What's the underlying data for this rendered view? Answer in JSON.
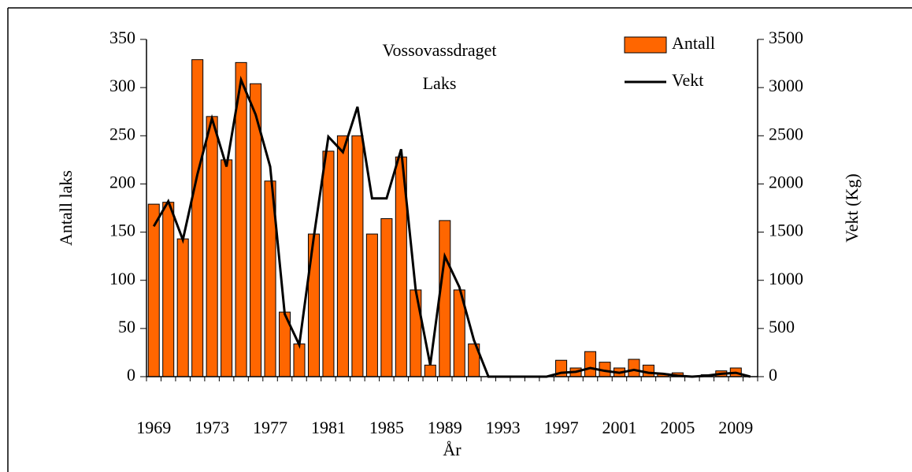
{
  "chart_data": {
    "type": "bar",
    "title": "Vossovassdraget",
    "subtitle": "Laks",
    "x_label": "År",
    "y_label": "Antall laks",
    "y2_label": "Vekt (Kg)",
    "categories": [
      "1969",
      null,
      null,
      null,
      "1973",
      null,
      null,
      null,
      "1977",
      null,
      null,
      null,
      "1981",
      null,
      null,
      null,
      "1985",
      null,
      null,
      null,
      "1989",
      null,
      null,
      null,
      "1993",
      null,
      null,
      null,
      "1997",
      null,
      null,
      null,
      "2001",
      null,
      null,
      null,
      "2005",
      null,
      null,
      null,
      "2009",
      null
    ],
    "series": [
      {
        "name": "Antall",
        "type": "bar",
        "color": "#ff6600",
        "values": [
          179,
          181,
          143,
          329,
          270,
          225,
          326,
          304,
          203,
          67,
          34,
          148,
          234,
          250,
          250,
          148,
          164,
          228,
          90,
          12,
          162,
          90,
          34,
          0,
          0,
          0,
          0,
          0,
          17,
          9,
          26,
          15,
          9,
          18,
          12,
          3,
          4,
          0,
          2,
          6,
          9,
          0
        ]
      },
      {
        "name": "Vekt",
        "type": "line",
        "color": "#000000",
        "axis": "y2",
        "values": [
          1560,
          1820,
          1420,
          2100,
          2680,
          2180,
          3080,
          2720,
          2180,
          650,
          330,
          1450,
          2490,
          2330,
          2800,
          1850,
          1850,
          2360,
          900,
          120,
          1250,
          930,
          380,
          0,
          0,
          0,
          0,
          0,
          40,
          50,
          90,
          60,
          40,
          70,
          40,
          30,
          10,
          0,
          10,
          30,
          40,
          0
        ]
      }
    ],
    "ylim": [
      0,
      350
    ],
    "yticks": [
      0,
      50,
      100,
      150,
      200,
      250,
      300,
      350
    ],
    "y2lim": [
      0,
      3500
    ],
    "y2ticks": [
      0,
      500,
      1000,
      1500,
      2000,
      2500,
      3000,
      3500
    ],
    "legend": "top-right",
    "grid": false
  }
}
